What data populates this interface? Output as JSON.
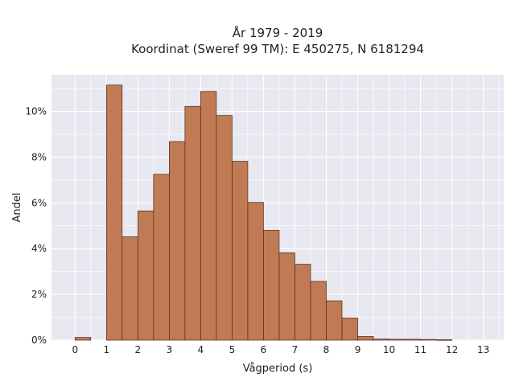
{
  "chart_data": {
    "type": "bar",
    "title_lines": [
      "År 1979 - 2019",
      "Koordinat (Sweref 99 TM): E 450275, N 6181294"
    ],
    "xlabel": "Vågperiod (s)",
    "ylabel": "Andel",
    "xlim": [
      -0.75,
      13.65
    ],
    "ylim": [
      0,
      11.6
    ],
    "bin_width": 0.5,
    "x_ticks": [
      "0",
      "1",
      "2",
      "3",
      "4",
      "5",
      "6",
      "7",
      "8",
      "9",
      "10",
      "11",
      "12",
      "13"
    ],
    "y_ticks": [
      "0%",
      "2%",
      "4%",
      "6%",
      "8%",
      "10%"
    ],
    "bar_color": "#c07b55",
    "edge_color": "#4a2a1a",
    "background_color": "#e8e8f0",
    "grid": true,
    "bins": [
      {
        "start": 0.0,
        "value": 0.12
      },
      {
        "start": 0.5,
        "value": 0.0
      },
      {
        "start": 1.0,
        "value": 11.15
      },
      {
        "start": 1.5,
        "value": 4.52
      },
      {
        "start": 2.0,
        "value": 5.65
      },
      {
        "start": 2.5,
        "value": 7.25
      },
      {
        "start": 3.0,
        "value": 8.68
      },
      {
        "start": 3.5,
        "value": 10.22
      },
      {
        "start": 4.0,
        "value": 10.87
      },
      {
        "start": 4.5,
        "value": 9.82
      },
      {
        "start": 5.0,
        "value": 7.82
      },
      {
        "start": 5.5,
        "value": 6.02
      },
      {
        "start": 6.0,
        "value": 4.8
      },
      {
        "start": 6.5,
        "value": 3.82
      },
      {
        "start": 7.0,
        "value": 3.32
      },
      {
        "start": 7.5,
        "value": 2.57
      },
      {
        "start": 8.0,
        "value": 1.72
      },
      {
        "start": 8.5,
        "value": 0.97
      },
      {
        "start": 9.0,
        "value": 0.16
      },
      {
        "start": 9.5,
        "value": 0.05
      },
      {
        "start": 10.0,
        "value": 0.04
      },
      {
        "start": 10.5,
        "value": 0.04
      },
      {
        "start": 11.0,
        "value": 0.03
      },
      {
        "start": 11.5,
        "value": 0.02
      }
    ]
  }
}
